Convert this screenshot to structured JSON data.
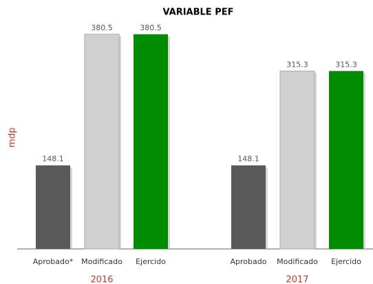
{
  "chart_data": {
    "type": "bar",
    "title": "VARIABLE PEF",
    "y_label": "mdp",
    "colors": [
      "#595959",
      "#d0d0d0",
      "#008a00"
    ],
    "ylim": [
      0,
      390
    ],
    "groups": [
      {
        "name": "2016",
        "categories": [
          "Aprobado*",
          "Modificado",
          "Ejercido"
        ],
        "values": [
          148.1,
          380.5,
          380.5
        ]
      },
      {
        "name": "2017",
        "categories": [
          "Aprobado",
          "Modificado",
          "Ejercido"
        ],
        "values": [
          148.1,
          315.3,
          315.3
        ]
      }
    ]
  }
}
